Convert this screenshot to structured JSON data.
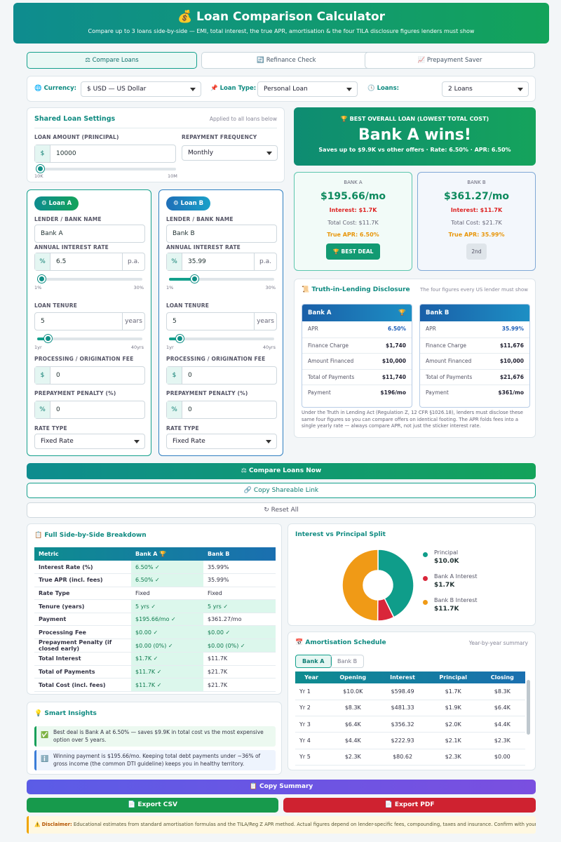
{
  "header": {
    "icon": "💰",
    "title": "Loan  Comparison Calculator",
    "subtitle": "Compare up to 3 loans side-by-side — EMI, total interest, the true APR, amortisation & the four TILA disclosure figures lenders must show"
  },
  "tabs": [
    "⚖ Compare Loans",
    "🔄 Refinance Check",
    "📈 Prepayment Saver"
  ],
  "settings": {
    "currency_label": "Currency:",
    "currency": "$ USD — US Dollar",
    "loan_type_label": "Loan Type:",
    "loan_type": "Personal Loan",
    "loans_label": "Loans:",
    "loans": "2 Loans"
  },
  "shared": {
    "title": "Shared Loan Settings",
    "note": "Applied to all loans below",
    "amount_label": "LOAN AMOUNT (PRINCIPAL)",
    "amount_prefix": "$",
    "amount": 10000,
    "min": "10K",
    "max": "10M",
    "frequency_label": "REPAYMENT FREQUENCY",
    "frequency": "Monthly"
  },
  "loans": [
    {
      "badge": "⚙ Loan A",
      "name_label": "LENDER / BANK NAME",
      "name": "Bank A",
      "rate_label": "ANNUAL INTEREST RATE",
      "rate_prefix": "%",
      "rate": 6.5,
      "rate_suffix": "p.a.",
      "rate_min": "1%",
      "rate_max": "30%",
      "tenure_label": "LOAN TENURE",
      "tenure": 5,
      "tenure_suffix": "years",
      "tenure_min": "1yr",
      "tenure_max": "40yrs",
      "fee_label": "PROCESSING / ORIGINATION FEE",
      "fee_prefix": "$",
      "fee": 0,
      "penalty_label": "PREPAYMENT PENALTY (%)",
      "penalty_prefix": "%",
      "penalty": 0,
      "type_label": "RATE TYPE",
      "type": "Fixed Rate"
    },
    {
      "badge": "⚙ Loan B",
      "name_label": "LENDER / BANK NAME",
      "name": "Bank B",
      "rate_label": "ANNUAL INTEREST RATE",
      "rate_prefix": "%",
      "rate": 35.99,
      "rate_suffix": "p.a.",
      "rate_min": "1%",
      "rate_max": "30%",
      "tenure_label": "LOAN TENURE",
      "tenure": 5,
      "tenure_suffix": "years",
      "tenure_min": "1yr",
      "tenure_max": "40yrs",
      "fee_label": "PROCESSING / ORIGINATION FEE",
      "fee_prefix": "$",
      "fee": 0,
      "penalty_label": "PREPAYMENT PENALTY (%)",
      "penalty_prefix": "%",
      "penalty": 0,
      "type_label": "RATE TYPE",
      "type": "Fixed Rate"
    }
  ],
  "winner": {
    "kicker": "🏆 BEST OVERALL LOAN (LOWEST TOTAL COST)",
    "title": "Bank A wins!",
    "subtitle": "Saves up to $9.9K vs other offers · Rate: 6.50% · APR: 6.50%"
  },
  "bank_cards": [
    {
      "name": "BANK A",
      "payment": "$195.66/mo",
      "interest": "Interest: $1.7K",
      "total": "Total Cost: $11.7K",
      "apr": "True APR: 6.50%",
      "badge": "🏆 BEST DEAL"
    },
    {
      "name": "BANK B",
      "payment": "$361.27/mo",
      "interest": "Interest: $11.7K",
      "total": "Total Cost: $21.7K",
      "apr": "True APR: 35.99%",
      "badge": "2nd"
    }
  ],
  "tila": {
    "icon": "📜",
    "title": "Truth-in-Lending Disclosure",
    "note": "The four figures every US lender must show",
    "cards": [
      {
        "name": "Bank A",
        "icon": "🏆",
        "rows": [
          [
            "APR",
            "6.50%"
          ],
          [
            "Finance Charge",
            "$1,740"
          ],
          [
            "Amount Financed",
            "$10,000"
          ],
          [
            "Total of Payments",
            "$11,740"
          ],
          [
            "Payment",
            "$196/mo"
          ]
        ]
      },
      {
        "name": "Bank B",
        "rows": [
          [
            "APR",
            "35.99%"
          ],
          [
            "Finance Charge",
            "$11,676"
          ],
          [
            "Amount Financed",
            "$10,000"
          ],
          [
            "Total of Payments",
            "$21,676"
          ],
          [
            "Payment",
            "$361/mo"
          ]
        ]
      }
    ],
    "footnote": "Under the Truth in Lending Act (Regulation Z, 12 CFR §1026.18), lenders must disclose these same four figures so you can compare offers on identical footing. The APR folds fees into a single yearly rate — always compare APR, not just the sticker interest rate."
  },
  "actions": {
    "compare": "⚖ Compare Loans Now",
    "link": "🔗 Copy Shareable Link",
    "reset": "↻ Reset All"
  },
  "breakdown": {
    "icon": "📋",
    "title": "Full Side-by-Side Breakdown",
    "header": [
      "Metric",
      "Bank A 🏆",
      "Bank B"
    ],
    "rows": [
      [
        "Interest Rate (%)",
        "6.50% ✓",
        "35.99%"
      ],
      [
        "True APR (incl. fees)",
        "6.50% ✓",
        "35.99%"
      ],
      [
        "Rate Type",
        "Fixed",
        "Fixed"
      ],
      [
        "Tenure (years)",
        "5 yrs ✓",
        "5 yrs ✓"
      ],
      [
        "Payment",
        "$195.66/mo ✓",
        "$361.27/mo"
      ],
      [
        "Processing Fee",
        "$0.00 ✓",
        "$0.00 ✓"
      ],
      [
        "Prepayment Penalty (if closed early)",
        "$0.00 (0%) ✓",
        "$0.00 (0%) ✓"
      ],
      [
        "Total Interest",
        "$1.7K ✓",
        "$11.7K"
      ],
      [
        "Total of Payments",
        "$11.7K ✓",
        "$21.7K"
      ],
      [
        "Total Cost (incl. fees)",
        "$11.7K ✓",
        "$21.7K"
      ]
    ]
  },
  "split": {
    "title": "Interest vs Principal Split",
    "names": [
      "Principal",
      "Bank A Interest",
      "Bank B Interest"
    ],
    "values": [
      10000,
      1740,
      11676
    ],
    "value_labels": [
      "$10.0K",
      "$1.7K",
      "$11.7K"
    ],
    "colors": [
      "#0f9d8a",
      "#d9263a",
      "#f09a16"
    ]
  },
  "amort": {
    "icon": "📅",
    "title": "Amortisation Schedule",
    "note": "Year-by-year summary",
    "tabs": [
      "Bank A",
      "Bank B"
    ],
    "columns": [
      "Year",
      "Opening",
      "Interest",
      "Principal",
      "Closing"
    ],
    "rows": [
      [
        "Yr 1",
        "$10.0K",
        "$598.49",
        "$1.7K",
        "$8.3K"
      ],
      [
        "Yr 2",
        "$8.3K",
        "$481.33",
        "$1.9K",
        "$6.4K"
      ],
      [
        "Yr 3",
        "$6.4K",
        "$356.32",
        "$2.0K",
        "$4.4K"
      ],
      [
        "Yr 4",
        "$4.4K",
        "$222.93",
        "$2.1K",
        "$2.3K"
      ],
      [
        "Yr 5",
        "$2.3K",
        "$80.62",
        "$2.3K",
        "$0.00"
      ]
    ]
  },
  "insights": {
    "icon": "💡",
    "title": "Smart Insights",
    "items": [
      {
        "icon": "✅",
        "text": "Best deal is Bank A at 6.50% — saves $9.9K in total cost vs the most expensive option over 5 years."
      },
      {
        "icon": "ℹ️",
        "text": "Winning payment is $195.66/mo. Keeping total debt payments under ~36% of gross income (the common DTI guideline) keeps you in healthy territory."
      }
    ]
  },
  "exports": {
    "summary": "📋 Copy Summary",
    "csv": "📄 Export CSV",
    "pdf": "📄 Export PDF"
  },
  "disclaimer": {
    "icon": "⚠️",
    "label": "Disclaimer:",
    "text": "Educational estimates from standard amortisation formulas and the TILA/Reg Z APR method. Actual figures depend on lender-specific fees, compounding, taxes and insurance. Confirm with your lender before deciding."
  }
}
